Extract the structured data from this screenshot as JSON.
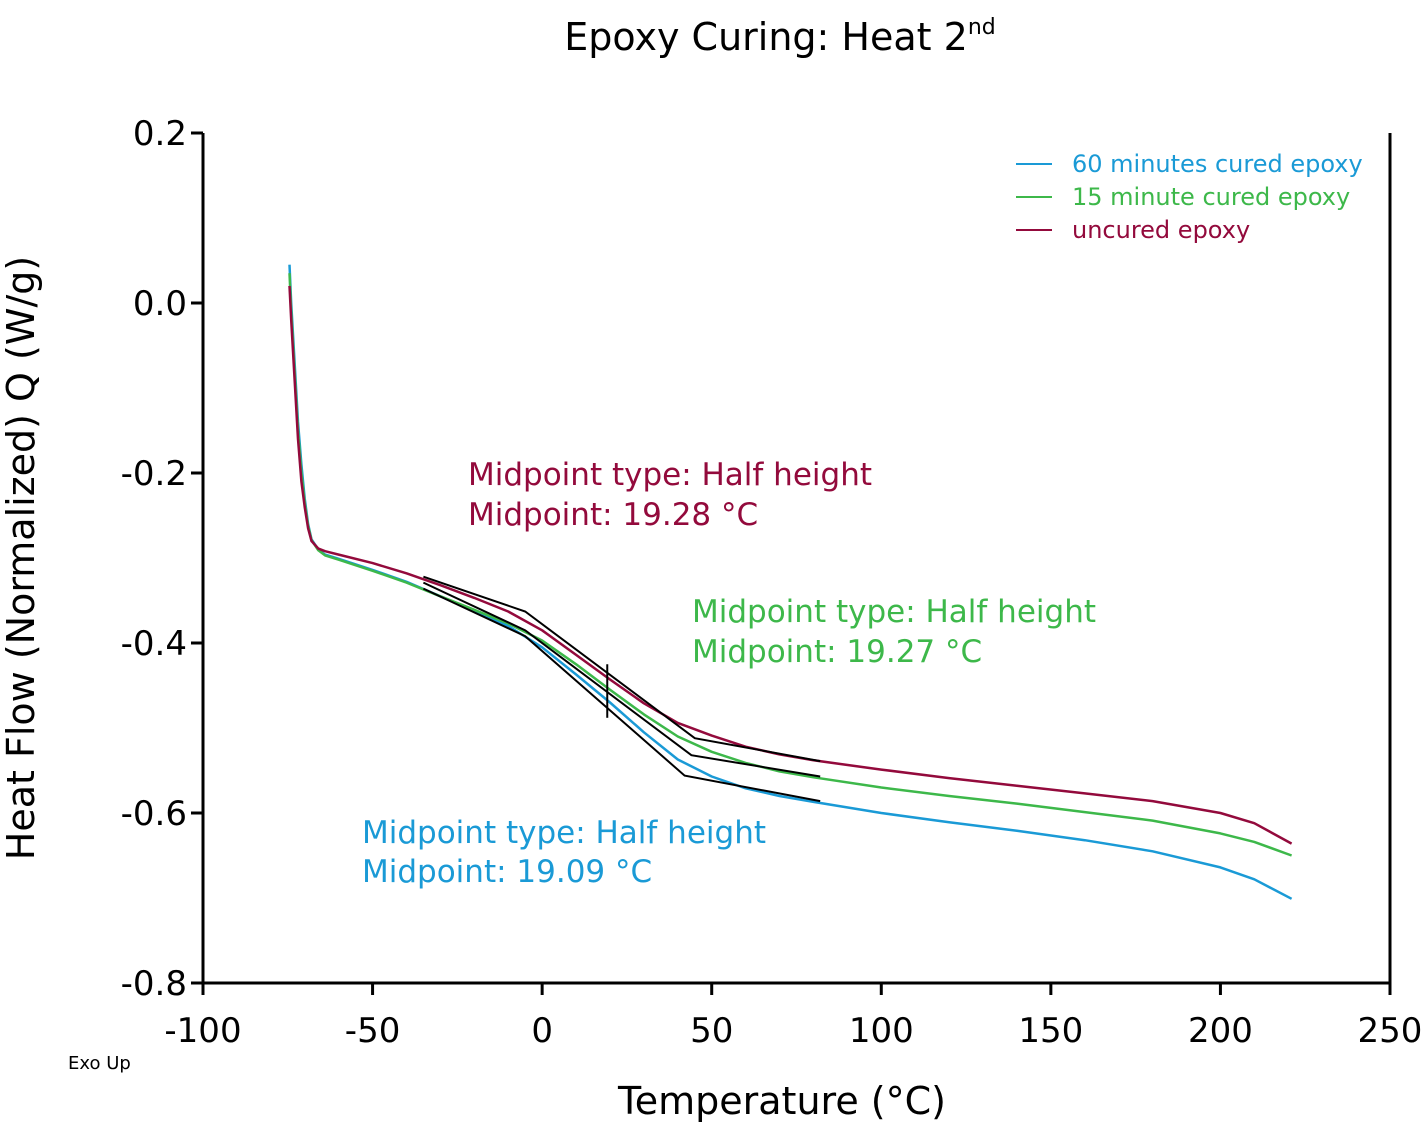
{
  "chart_data": {
    "type": "line",
    "title": "Epoxy Curing: Heat 2",
    "title_superscript": "nd",
    "xlabel": "Temperature (°C)",
    "ylabel": "Heat Flow (Normalized) Q (W/g)",
    "note": "Exo Up",
    "xlim": [
      -100,
      250
    ],
    "ylim": [
      -0.8,
      0.2
    ],
    "x_ticks": [
      -100,
      -50,
      0,
      50,
      100,
      150,
      200,
      250
    ],
    "x_tick_labels": [
      "-100",
      "-50",
      "0",
      "50",
      "100",
      "150",
      "200",
      "250"
    ],
    "y_ticks": [
      -0.8,
      -0.6,
      -0.4,
      -0.2,
      0.0,
      0.2
    ],
    "y_tick_labels": [
      "-0.8",
      "-0.6",
      "-0.4",
      "-0.2",
      "0.0",
      "0.2"
    ],
    "grid": false,
    "legend_position": "top-right",
    "series": [
      {
        "name": "60 minutes cured epoxy",
        "color": "#1a9ad6",
        "x": [
          -74.5,
          -74,
          -73,
          -72,
          -71,
          -70,
          -69,
          -68,
          -66,
          -64,
          -60,
          -50,
          -40,
          -30,
          -20,
          -10,
          0,
          10,
          20,
          30,
          40,
          50,
          60,
          70,
          80,
          100,
          120,
          140,
          160,
          180,
          200,
          210,
          221
        ],
        "y": [
          0.045,
          0.0,
          -0.07,
          -0.14,
          -0.19,
          -0.23,
          -0.26,
          -0.278,
          -0.29,
          -0.296,
          -0.301,
          -0.314,
          -0.328,
          -0.345,
          -0.362,
          -0.38,
          -0.405,
          -0.437,
          -0.47,
          -0.505,
          -0.537,
          -0.557,
          -0.571,
          -0.58,
          -0.587,
          -0.6,
          -0.611,
          -0.621,
          -0.632,
          -0.645,
          -0.664,
          -0.678,
          -0.701
        ]
      },
      {
        "name": "15 minute cured epoxy",
        "color": "#3db84a",
        "x": [
          -74.5,
          -74,
          -73,
          -72,
          -71,
          -70,
          -69,
          -68,
          -66,
          -64,
          -60,
          -50,
          -40,
          -30,
          -20,
          -10,
          0,
          10,
          20,
          30,
          40,
          50,
          60,
          70,
          80,
          100,
          120,
          140,
          160,
          180,
          200,
          210,
          221
        ],
        "y": [
          0.035,
          -0.01,
          -0.08,
          -0.15,
          -0.2,
          -0.235,
          -0.262,
          -0.279,
          -0.291,
          -0.297,
          -0.302,
          -0.315,
          -0.329,
          -0.345,
          -0.361,
          -0.377,
          -0.397,
          -0.425,
          -0.455,
          -0.484,
          -0.51,
          -0.528,
          -0.541,
          -0.551,
          -0.558,
          -0.57,
          -0.58,
          -0.589,
          -0.599,
          -0.609,
          -0.624,
          -0.634,
          -0.65
        ]
      },
      {
        "name": "uncured epoxy",
        "color": "#930a3c",
        "x": [
          -74.5,
          -74,
          -73,
          -72,
          -71,
          -70,
          -69,
          -68,
          -66,
          -64,
          -60,
          -50,
          -40,
          -30,
          -20,
          -10,
          0,
          10,
          20,
          30,
          40,
          50,
          60,
          70,
          80,
          100,
          120,
          140,
          160,
          180,
          200,
          210,
          221
        ],
        "y": [
          0.02,
          -0.02,
          -0.09,
          -0.16,
          -0.21,
          -0.24,
          -0.265,
          -0.28,
          -0.289,
          -0.292,
          -0.296,
          -0.306,
          -0.318,
          -0.332,
          -0.347,
          -0.363,
          -0.385,
          -0.414,
          -0.443,
          -0.471,
          -0.494,
          -0.509,
          -0.522,
          -0.531,
          -0.538,
          -0.549,
          -0.559,
          -0.568,
          -0.577,
          -0.586,
          -0.6,
          -0.612,
          -0.636
        ]
      }
    ],
    "analysis_lines": [
      {
        "x": [
          -35,
          -5,
          42,
          82
        ],
        "y": [
          -0.336,
          -0.392,
          -0.556,
          -0.586
        ]
      },
      {
        "x": [
          -35,
          -5,
          44,
          82
        ],
        "y": [
          -0.329,
          -0.385,
          -0.532,
          -0.557
        ]
      },
      {
        "x": [
          -35,
          -5,
          45,
          82
        ],
        "y": [
          -0.322,
          -0.363,
          -0.512,
          -0.539
        ]
      }
    ],
    "midpoint_marker": {
      "x": 19.2,
      "y_range": [
        -0.488,
        -0.425
      ]
    },
    "annotations": [
      {
        "line1": "Midpoint type: Half height",
        "line2": "Midpoint: 19.28 °C",
        "color": "#930a3c"
      },
      {
        "line1": "Midpoint type: Half height",
        "line2": "Midpoint: 19.27 °C",
        "color": "#3db84a"
      },
      {
        "line1": "Midpoint type: Half height",
        "line2": "Midpoint: 19.09 °C",
        "color": "#1a9ad6"
      }
    ]
  }
}
